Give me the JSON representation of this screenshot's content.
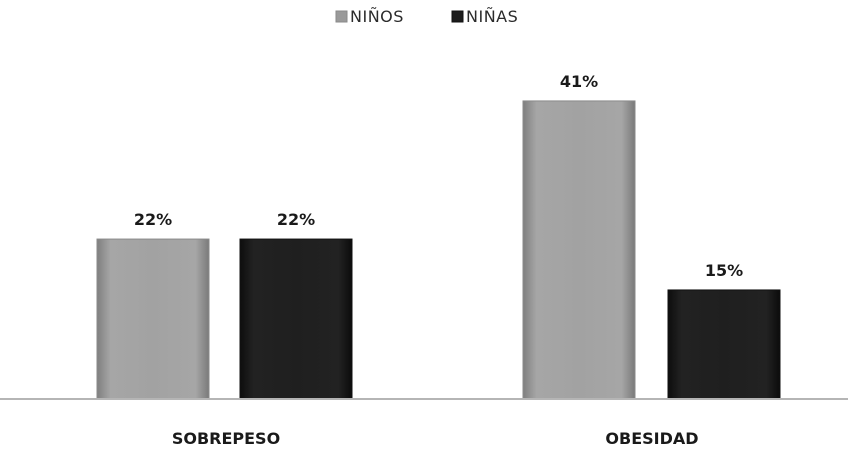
{
  "chart_data": {
    "type": "bar",
    "categories": [
      "SOBREPESO",
      "OBESIDAD"
    ],
    "series": [
      {
        "name": "NIÑOS",
        "values": [
          22,
          41
        ],
        "labels": [
          "22%",
          "41%"
        ],
        "color": "#9a9a9a"
      },
      {
        "name": "NIÑAS",
        "values": [
          22,
          15
        ],
        "labels": [
          "22%",
          "15%"
        ],
        "color": "#1c1c1c"
      }
    ],
    "legend_position": "top-center",
    "grid": false,
    "ylim": [
      0,
      45
    ],
    "baseline_color": "#b5b5b5"
  }
}
